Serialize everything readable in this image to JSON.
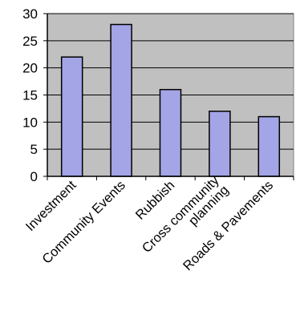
{
  "chart_data": {
    "type": "bar",
    "title": "",
    "xlabel": "",
    "ylabel": "",
    "categories": [
      "Investment",
      "Community Events",
      "Rubbish",
      "Cross community planning",
      "Roads & Pavements"
    ],
    "category_lines": [
      [
        "Investment"
      ],
      [
        "Community Events"
      ],
      [
        "Rubbish"
      ],
      [
        "Cross community",
        "planning"
      ],
      [
        "Roads & Pavements"
      ]
    ],
    "values": [
      22,
      28,
      16,
      12,
      11
    ],
    "ylim": [
      0,
      30
    ],
    "yticks": [
      "0",
      "5",
      "10",
      "15",
      "20",
      "25",
      "30"
    ],
    "grid": true,
    "plot_background": "#c0c0c0",
    "bar_color": "#a3a5e6",
    "bar_edge_color": "#000000"
  }
}
